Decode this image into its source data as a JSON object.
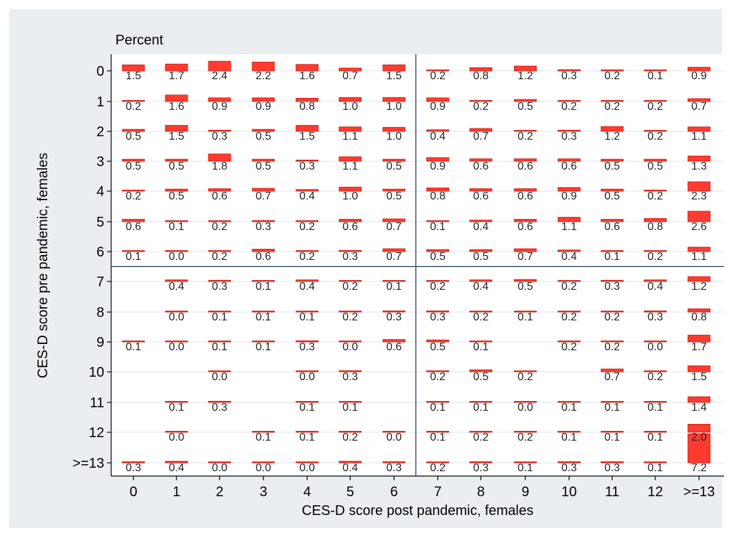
{
  "chart_data": {
    "type": "heatmap",
    "title": "Percent",
    "xlabel": "CES-D score post pandemic, females",
    "ylabel": "CES-D score pre pandemic, females",
    "x_categories": [
      "0",
      "1",
      "2",
      "3",
      "4",
      "5",
      "6",
      "7",
      "8",
      "9",
      "10",
      "11",
      "12",
      ">=13"
    ],
    "y_categories": [
      "0",
      "1",
      "2",
      "3",
      "4",
      "5",
      "6",
      "7",
      "8",
      "9",
      "10",
      "11",
      "12",
      ">=13"
    ],
    "x_divider_after": "6",
    "y_divider_after": "6",
    "colors": {
      "bar_fill": "#ff3b30",
      "bar_stroke": "#c8140c",
      "grid": "#e8eef3",
      "divider": "#1a3550",
      "background": "#ebeef0",
      "plot_bg": "#ffffff"
    },
    "values": [
      [
        "1.5",
        "1.7",
        "2.4",
        "2.2",
        "1.6",
        "0.7",
        "1.5",
        "0.2",
        "0.8",
        "1.2",
        "0.3",
        "0.2",
        "0.1",
        "0.9"
      ],
      [
        "0.2",
        "1.6",
        "0.9",
        "0.9",
        "0.8",
        "1.0",
        "1.0",
        "0.9",
        "0.2",
        "0.5",
        "0.2",
        "0.2",
        "0.2",
        "0.7"
      ],
      [
        "0.5",
        "1.5",
        "0.3",
        "0.5",
        "1.5",
        "1.1",
        "1.0",
        "0.4",
        "0.7",
        "0.2",
        "0.3",
        "1.2",
        "0.2",
        "1.1"
      ],
      [
        "0.5",
        "0.5",
        "1.8",
        "0.5",
        "0.3",
        "1.1",
        "0.5",
        "0.9",
        "0.6",
        "0.6",
        "0.6",
        "0.5",
        "0.5",
        "1.3"
      ],
      [
        "0.2",
        "0.5",
        "0.6",
        "0.7",
        "0.4",
        "1.0",
        "0.5",
        "0.8",
        "0.6",
        "0.6",
        "0.9",
        "0.5",
        "0.2",
        "2.3"
      ],
      [
        "0.6",
        "0.1",
        "0.2",
        "0.3",
        "0.2",
        "0.6",
        "0.7",
        "0.1",
        "0.4",
        "0.6",
        "1.1",
        "0.6",
        "0.8",
        "2.6"
      ],
      [
        "0.1",
        "0.0",
        "0.2",
        "0.6",
        "0.2",
        "0.3",
        "0.7",
        "0.5",
        "0.5",
        "0.7",
        "0.4",
        "0.1",
        "0.2",
        "1.1"
      ],
      [
        null,
        "0.4",
        "0.3",
        "0.1",
        "0.4",
        "0.2",
        "0.1",
        "0.2",
        "0.4",
        "0.5",
        "0.2",
        "0.3",
        "0.4",
        "1.2"
      ],
      [
        null,
        "0.0",
        "0.1",
        "0.1",
        "0.1",
        "0.2",
        "0.3",
        "0.3",
        "0.2",
        "0.1",
        "0.2",
        "0.2",
        "0.3",
        "0.8"
      ],
      [
        "0.1",
        "0.0",
        "0.1",
        "0.1",
        "0.3",
        "0.0",
        "0.6",
        "0.5",
        "0.1",
        null,
        "0.2",
        "0.2",
        "0.0",
        "1.7"
      ],
      [
        null,
        null,
        "0.0",
        null,
        "0.0",
        "0.3",
        null,
        "0.2",
        "0.5",
        "0.2",
        null,
        "0.7",
        "0.2",
        "1.5"
      ],
      [
        null,
        "0.1",
        "0.3",
        null,
        "0.1",
        "0.1",
        null,
        "0.1",
        "0.1",
        "0.0",
        "0.1",
        "0.1",
        "0.1",
        "1.4"
      ],
      [
        null,
        "0.0",
        null,
        "0.1",
        "0.1",
        "0.2",
        "0.0",
        "0.1",
        "0.2",
        "0.2",
        "0.1",
        "0.1",
        "0.1",
        "2.0"
      ],
      [
        "0.3",
        "0.4",
        "0.0",
        "0.0",
        "0.0",
        "0.4",
        "0.3",
        "0.2",
        "0.3",
        "0.1",
        "0.3",
        "0.3",
        "0.1",
        "7.2"
      ]
    ]
  }
}
